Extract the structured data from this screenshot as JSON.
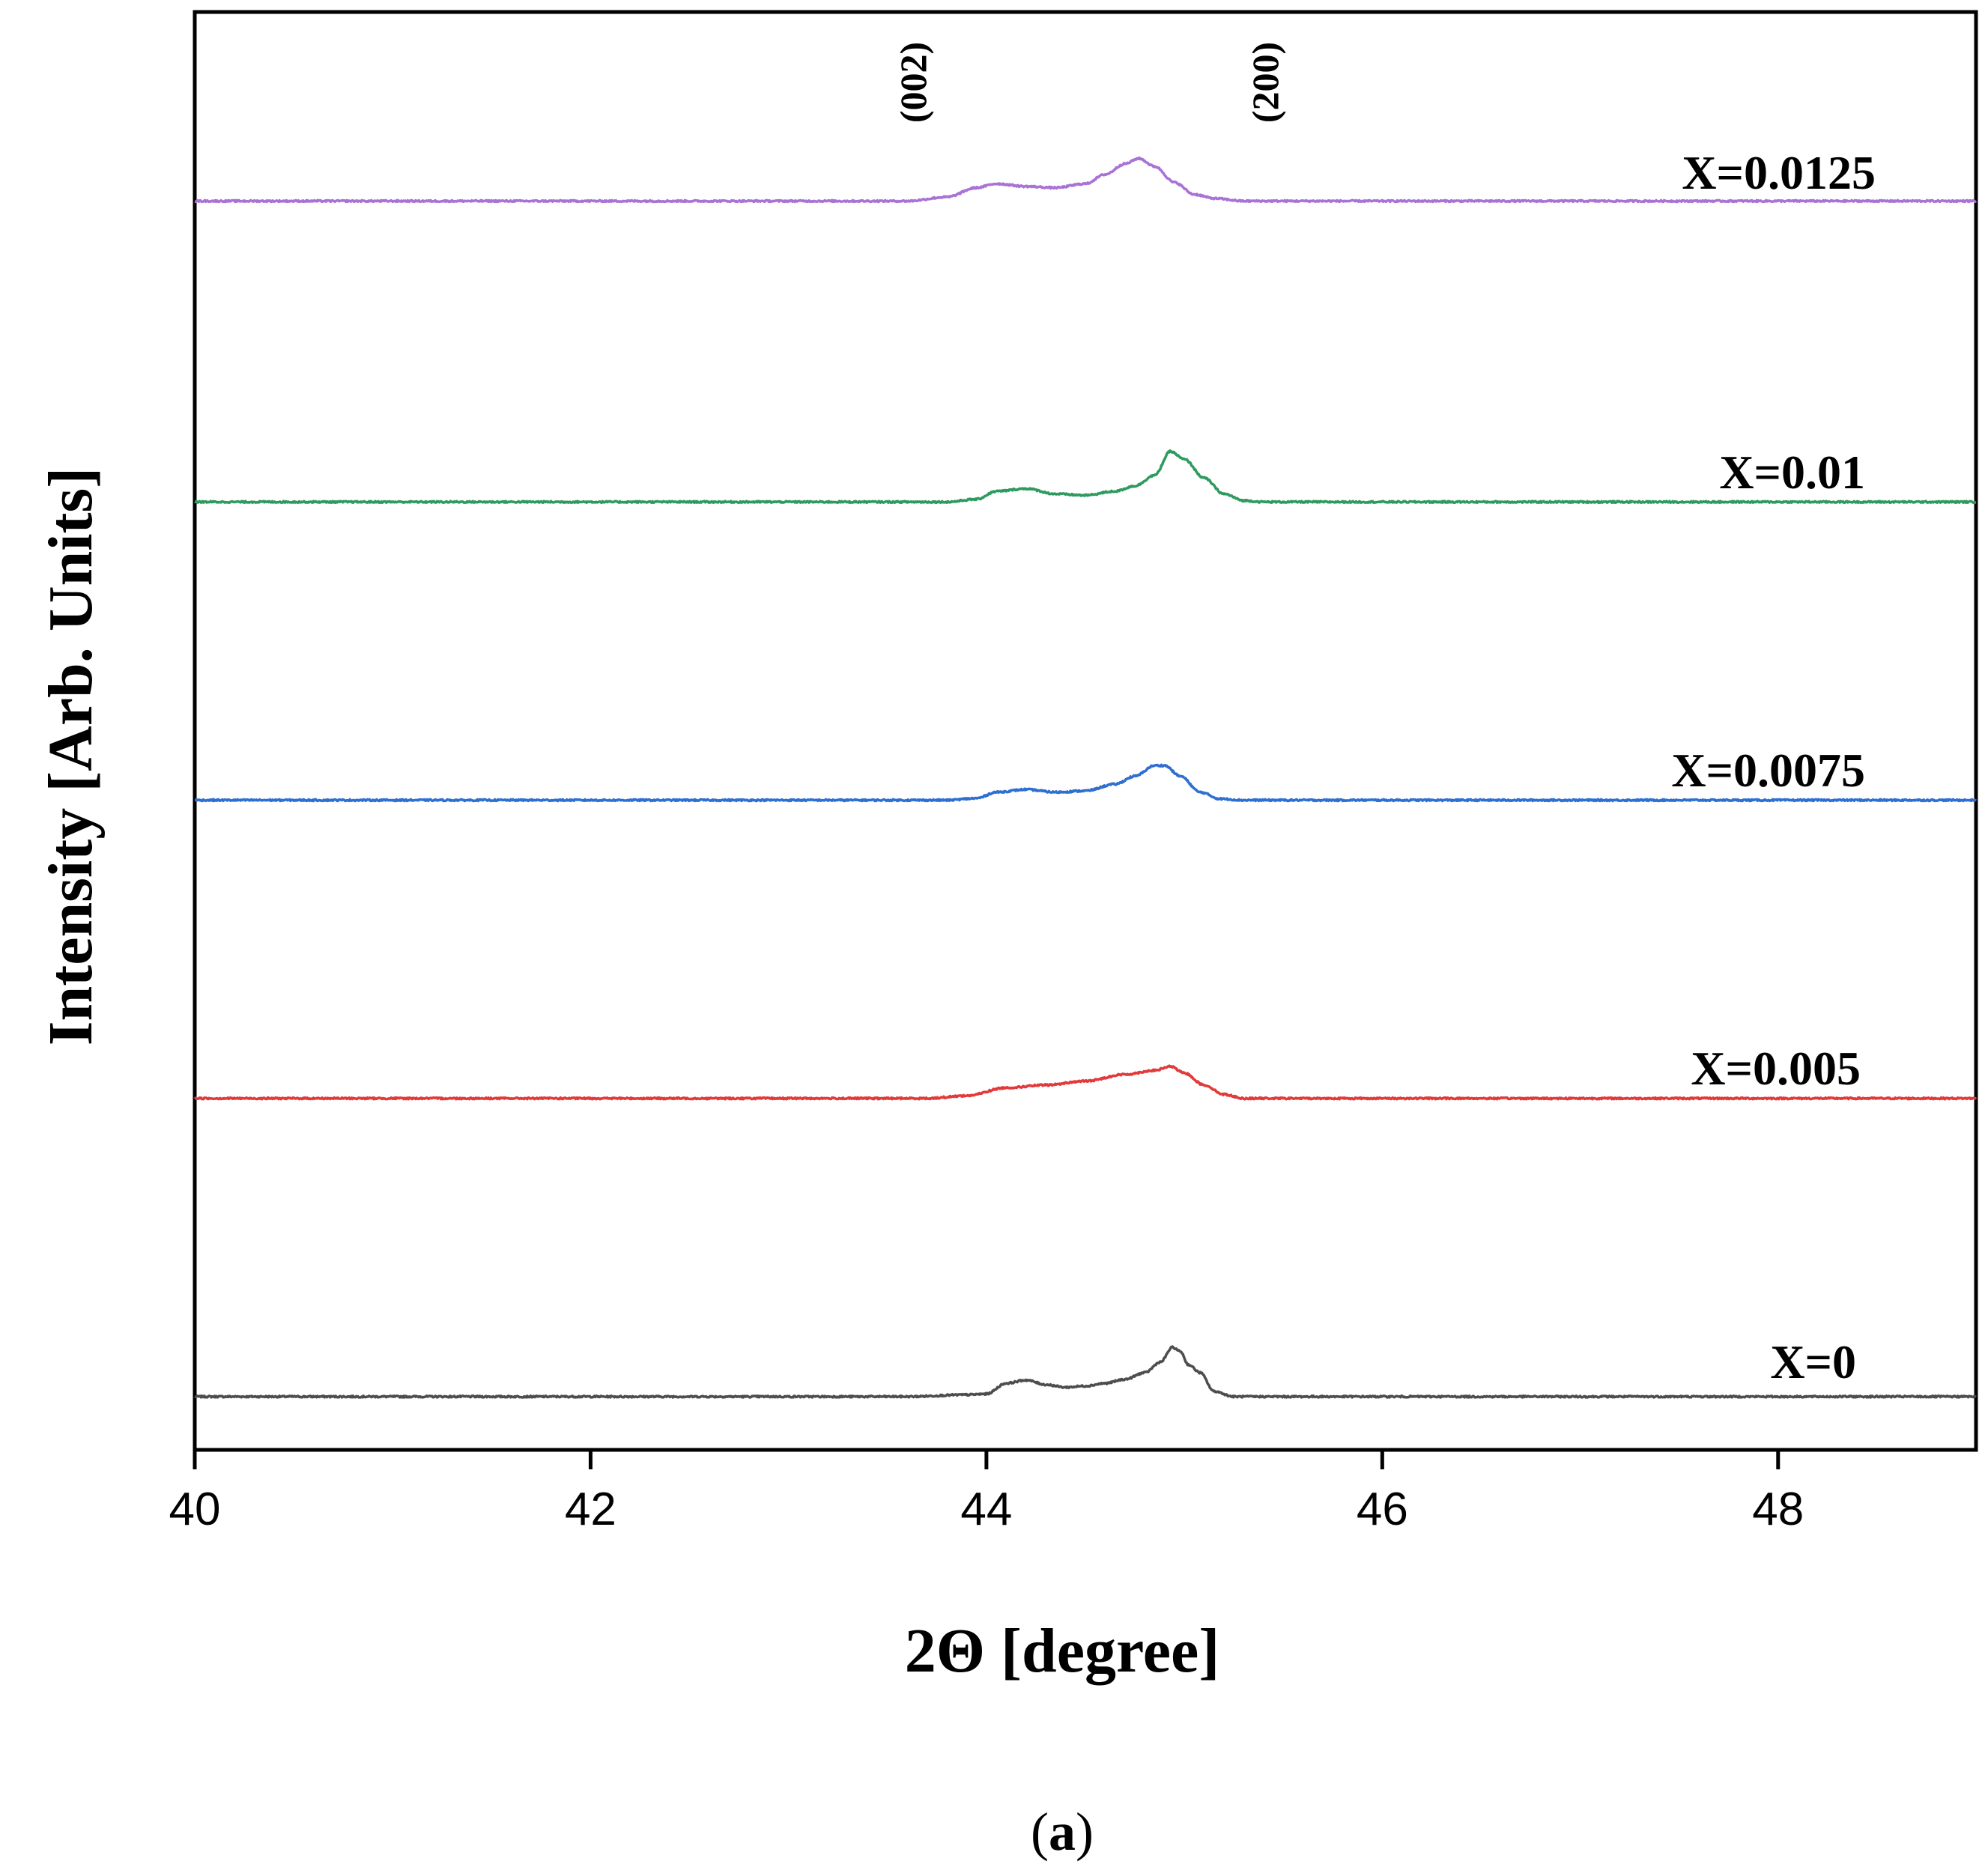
{
  "chart_data": {
    "type": "line",
    "title": "",
    "xlabel": "2Θ [degree]",
    "ylabel": "Intensity [Arb. Units]",
    "xlim": [
      40,
      49
    ],
    "ylim": [
      0,
      5.4
    ],
    "xticks": [
      "40",
      "42",
      "44",
      "46",
      "48"
    ],
    "xtick_values": [
      40,
      42,
      44,
      46,
      48
    ],
    "grid": false,
    "peak_annotations": [
      {
        "label": "(002)",
        "x": 43.65
      },
      {
        "label": "(200)",
        "x": 45.42
      }
    ],
    "series": [
      {
        "name": "X=0",
        "color": "#4d4d4d",
        "baseline": 0.2,
        "points": [
          [
            40,
            0.2
          ],
          [
            43.6,
            0.2
          ],
          [
            43.9,
            0.207
          ],
          [
            44.0,
            0.21
          ],
          [
            44.1,
            0.25
          ],
          [
            44.2,
            0.262
          ],
          [
            44.3,
            0.245
          ],
          [
            44.4,
            0.235
          ],
          [
            44.5,
            0.24
          ],
          [
            44.6,
            0.25
          ],
          [
            44.7,
            0.265
          ],
          [
            44.8,
            0.29
          ],
          [
            44.88,
            0.33
          ],
          [
            44.94,
            0.385
          ],
          [
            44.98,
            0.37
          ],
          [
            45.02,
            0.32
          ],
          [
            45.08,
            0.29
          ],
          [
            45.15,
            0.22
          ],
          [
            45.25,
            0.2
          ],
          [
            49,
            0.2
          ]
        ]
      },
      {
        "name": "X=0.005",
        "color": "#e23a3a",
        "baseline": 1.32,
        "points": [
          [
            40,
            1.32
          ],
          [
            43.7,
            1.32
          ],
          [
            43.9,
            1.33
          ],
          [
            44.1,
            1.36
          ],
          [
            44.3,
            1.37
          ],
          [
            44.5,
            1.385
          ],
          [
            44.7,
            1.41
          ],
          [
            44.85,
            1.425
          ],
          [
            44.93,
            1.44
          ],
          [
            45.0,
            1.415
          ],
          [
            45.1,
            1.37
          ],
          [
            45.2,
            1.335
          ],
          [
            45.3,
            1.32
          ],
          [
            49,
            1.32
          ]
        ]
      },
      {
        "name": "X=0.0075",
        "color": "#2f6fd0",
        "baseline": 2.44,
        "points": [
          [
            40,
            2.44
          ],
          [
            43.8,
            2.44
          ],
          [
            43.95,
            2.447
          ],
          [
            44.05,
            2.47
          ],
          [
            44.2,
            2.48
          ],
          [
            44.35,
            2.47
          ],
          [
            44.5,
            2.475
          ],
          [
            44.65,
            2.5
          ],
          [
            44.75,
            2.53
          ],
          [
            44.85,
            2.57
          ],
          [
            44.9,
            2.57
          ],
          [
            44.98,
            2.53
          ],
          [
            45.08,
            2.47
          ],
          [
            45.18,
            2.445
          ],
          [
            45.3,
            2.44
          ],
          [
            49,
            2.44
          ]
        ]
      },
      {
        "name": "X=0.01",
        "color": "#2e9a5e",
        "baseline": 3.56,
        "points": [
          [
            40,
            3.56
          ],
          [
            43.8,
            3.56
          ],
          [
            43.95,
            3.57
          ],
          [
            44.05,
            3.6
          ],
          [
            44.2,
            3.61
          ],
          [
            44.35,
            3.59
          ],
          [
            44.5,
            3.585
          ],
          [
            44.65,
            3.6
          ],
          [
            44.75,
            3.62
          ],
          [
            44.85,
            3.66
          ],
          [
            44.93,
            3.75
          ],
          [
            45.0,
            3.72
          ],
          [
            45.1,
            3.65
          ],
          [
            45.2,
            3.59
          ],
          [
            45.3,
            3.565
          ],
          [
            45.4,
            3.56
          ],
          [
            49,
            3.56
          ]
        ]
      },
      {
        "name": "X=0.0125",
        "color": "#a872d6",
        "baseline": 4.69,
        "points": [
          [
            40,
            4.69
          ],
          [
            43.6,
            4.69
          ],
          [
            43.8,
            4.705
          ],
          [
            43.95,
            4.74
          ],
          [
            44.05,
            4.755
          ],
          [
            44.2,
            4.745
          ],
          [
            44.35,
            4.74
          ],
          [
            44.5,
            4.755
          ],
          [
            44.6,
            4.79
          ],
          [
            44.7,
            4.83
          ],
          [
            44.77,
            4.85
          ],
          [
            44.85,
            4.82
          ],
          [
            44.95,
            4.76
          ],
          [
            45.05,
            4.715
          ],
          [
            45.15,
            4.7
          ],
          [
            45.3,
            4.69
          ],
          [
            49,
            4.69
          ]
        ]
      }
    ]
  },
  "caption": {
    "open": "(",
    "letter": "a",
    "close": ")"
  }
}
